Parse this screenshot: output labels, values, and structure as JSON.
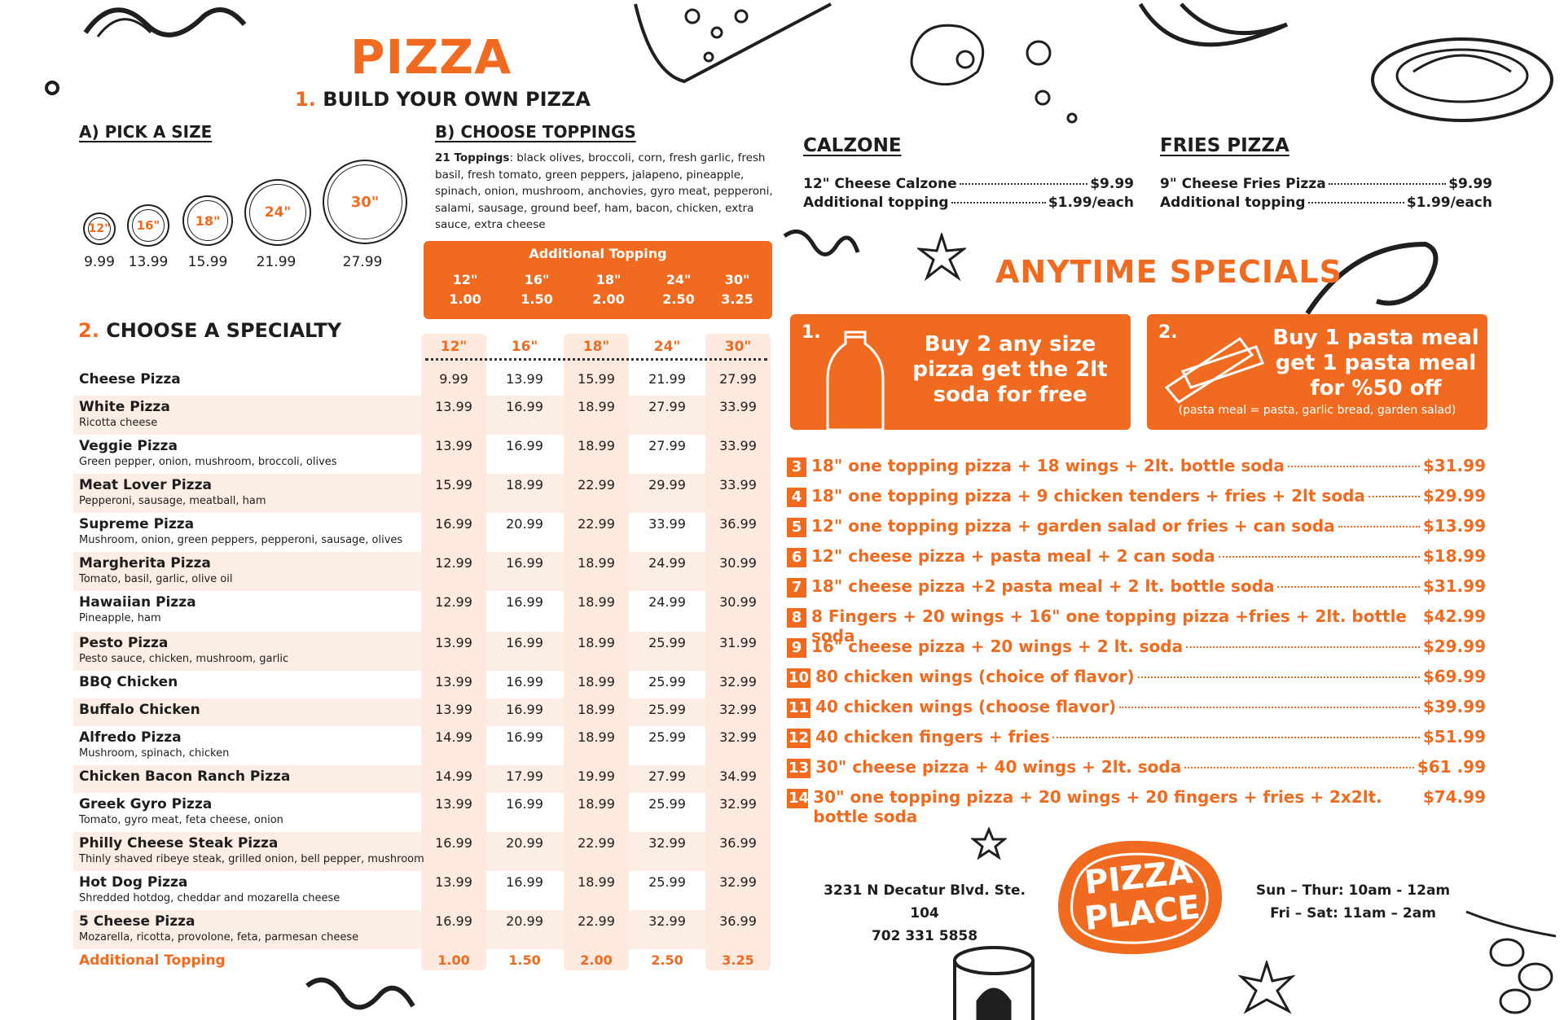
{
  "page": {
    "title": "PIZZA",
    "build_heading_num": "1.",
    "build_heading": "BUILD YOUR OWN PIZZA",
    "accent": "#f06a1f"
  },
  "sizes": {
    "heading": "A) PICK A SIZE",
    "items": [
      {
        "label": "12\"",
        "price": "9.99"
      },
      {
        "label": "16\"",
        "price": "13.99"
      },
      {
        "label": "18\"",
        "price": "15.99"
      },
      {
        "label": "24\"",
        "price": "21.99"
      },
      {
        "label": "30\"",
        "price": "27.99"
      }
    ]
  },
  "toppings": {
    "heading": "B) CHOOSE TOPPINGS",
    "count_label": "21 Toppings",
    "list": ": black olives, broccoli, corn, fresh garlic, fresh basil, fresh tomato, green peppers, jalapeno, pineapple, spinach, onion, mushroom, anchovies, gyro meat, pepperoni, salami, sausage, ground beef, ham, bacon, chicken, extra sauce, extra cheese",
    "additional_title": "Additional Topping",
    "additional": [
      {
        "size": "12\"",
        "price": "1.00"
      },
      {
        "size": "16\"",
        "price": "1.50"
      },
      {
        "size": "18\"",
        "price": "2.00"
      },
      {
        "size": "24\"",
        "price": "2.50"
      },
      {
        "size": "30\"",
        "price": "3.25"
      }
    ]
  },
  "specialty": {
    "heading_num": "2.",
    "heading": "CHOOSE A SPECIALTY",
    "columns": [
      "12\"",
      "16\"",
      "18\"",
      "24\"",
      "30\""
    ],
    "rows": [
      {
        "name": "Cheese Pizza",
        "desc": "",
        "prices": [
          "9.99",
          "13.99",
          "15.99",
          "21.99",
          "27.99"
        ]
      },
      {
        "name": "White Pizza",
        "desc": "Ricotta cheese",
        "prices": [
          "13.99",
          "16.99",
          "18.99",
          "27.99",
          "33.99"
        ]
      },
      {
        "name": "Veggie Pizza",
        "desc": "Green pepper, onion, mushroom, broccoli, olives",
        "prices": [
          "13.99",
          "16.99",
          "18.99",
          "27.99",
          "33.99"
        ]
      },
      {
        "name": "Meat Lover Pizza",
        "desc": "Pepperoni, sausage, meatball, ham",
        "prices": [
          "15.99",
          "18.99",
          "22.99",
          "29.99",
          "33.99"
        ]
      },
      {
        "name": "Supreme Pizza",
        "desc": "Mushroom, onion, green peppers, pepperoni, sausage, olives",
        "prices": [
          "16.99",
          "20.99",
          "22.99",
          "33.99",
          "36.99"
        ]
      },
      {
        "name": "Margherita Pizza",
        "desc": "Tomato, basil, garlic, olive oil",
        "prices": [
          "12.99",
          "16.99",
          "18.99",
          "24.99",
          "30.99"
        ]
      },
      {
        "name": "Hawaiian Pizza",
        "desc": "Pineapple, ham",
        "prices": [
          "12.99",
          "16.99",
          "18.99",
          "24.99",
          "30.99"
        ]
      },
      {
        "name": "Pesto Pizza",
        "desc": "Pesto sauce, chicken, mushroom, garlic",
        "prices": [
          "13.99",
          "16.99",
          "18.99",
          "25.99",
          "31.99"
        ]
      },
      {
        "name": "BBQ Chicken",
        "desc": "",
        "prices": [
          "13.99",
          "16.99",
          "18.99",
          "25.99",
          "32.99"
        ]
      },
      {
        "name": "Buffalo Chicken",
        "desc": "",
        "prices": [
          "13.99",
          "16.99",
          "18.99",
          "25.99",
          "32.99"
        ]
      },
      {
        "name": "Alfredo Pizza",
        "desc": "Mushroom, spinach, chicken",
        "prices": [
          "14.99",
          "16.99",
          "18.99",
          "25.99",
          "32.99"
        ]
      },
      {
        "name": "Chicken Bacon Ranch Pizza",
        "desc": "",
        "prices": [
          "14.99",
          "17.99",
          "19.99",
          "27.99",
          "34.99"
        ]
      },
      {
        "name": "Greek Gyro Pizza",
        "desc": "Tomato, gyro meat, feta cheese, onion",
        "prices": [
          "13.99",
          "16.99",
          "18.99",
          "25.99",
          "32.99"
        ]
      },
      {
        "name": "Philly Cheese Steak Pizza",
        "desc": "Thinly shaved ribeye steak, grilled onion, bell pepper, mushroom",
        "prices": [
          "16.99",
          "20.99",
          "22.99",
          "32.99",
          "36.99"
        ]
      },
      {
        "name": "Hot Dog Pizza",
        "desc": "Shredded hotdog, cheddar and mozarella cheese",
        "prices": [
          "13.99",
          "16.99",
          "18.99",
          "25.99",
          "32.99"
        ]
      },
      {
        "name": "5 Cheese Pizza",
        "desc": "Mozarella, ricotta, provolone, feta, parmesan cheese",
        "prices": [
          "16.99",
          "20.99",
          "22.99",
          "32.99",
          "36.99"
        ]
      }
    ],
    "additional_label": "Additional Topping",
    "additional_prices": [
      "1.00",
      "1.50",
      "2.00",
      "2.50",
      "3.25"
    ]
  },
  "calzone": {
    "heading": "CALZONE",
    "lines": [
      {
        "label": "12\" Cheese Calzone",
        "price": "$9.99"
      },
      {
        "label": "Additional topping",
        "price": "$1.99/each"
      }
    ]
  },
  "fries_pizza": {
    "heading": "FRIES PIZZA",
    "lines": [
      {
        "label": "9\" Cheese Fries Pizza",
        "price": "$9.99"
      },
      {
        "label": "Additional topping",
        "price": "$1.99/each"
      }
    ]
  },
  "specials": {
    "heading": "ANYTIME SPECIALS",
    "box1": {
      "num": "1.",
      "line1": "Buy 2 any size",
      "line2": "pizza get the 2lt",
      "line3": "soda for free"
    },
    "box2": {
      "num": "2.",
      "line1": "Buy 1 pasta meal",
      "line2": "get 1 pasta meal",
      "line3": "for %50 off",
      "note": "(pasta meal = pasta, garlic bread, garden salad)"
    },
    "deals": [
      {
        "num": "3",
        "text": "18\" one topping pizza + 18 wings + 2lt. bottle soda",
        "price": "$31.99"
      },
      {
        "num": "4",
        "text": "18\" one topping pizza + 9 chicken tenders + fries + 2lt soda",
        "price": "$29.99"
      },
      {
        "num": "5",
        "text": "12\" one topping pizza + garden salad or fries + can soda",
        "price": "$13.99"
      },
      {
        "num": "6",
        "text": "12\" cheese pizza + pasta meal + 2 can soda",
        "price": "$18.99"
      },
      {
        "num": "7",
        "text": "18\" cheese pizza +2 pasta meal + 2 lt. bottle soda",
        "price": "$31.99"
      },
      {
        "num": "8",
        "text": "8 Fingers + 20 wings + 16\" one topping pizza +fries + 2lt. bottle soda",
        "price": "$42.99"
      },
      {
        "num": "9",
        "text": "16\" cheese pizza + 20 wings + 2 lt. soda",
        "price": "$29.99"
      },
      {
        "num": "10",
        "text": "80 chicken wings (choice of flavor)",
        "price": "$69.99"
      },
      {
        "num": "11",
        "text": "40 chicken wings (choose flavor)",
        "price": "$39.99"
      },
      {
        "num": "12",
        "text": "40 chicken fingers + fries",
        "price": "$51.99"
      },
      {
        "num": "13",
        "text": "30\" cheese pizza + 40 wings + 2lt. soda",
        "price": "$61 .99"
      },
      {
        "num": "14",
        "text": "30\" one topping pizza + 20 wings + 20 fingers + fries + 2x2lt. bottle soda",
        "price": "$74.99"
      }
    ]
  },
  "footer": {
    "address_line1": "3231 N Decatur Blvd. Ste. 104",
    "address_line2": "702 331 5858",
    "logo_line1": "PIZZA",
    "logo_line2": "PLACE",
    "hours_line1": "Sun – Thur: 10am - 12am",
    "hours_line2": "Fri – Sat: 11am – 2am"
  }
}
